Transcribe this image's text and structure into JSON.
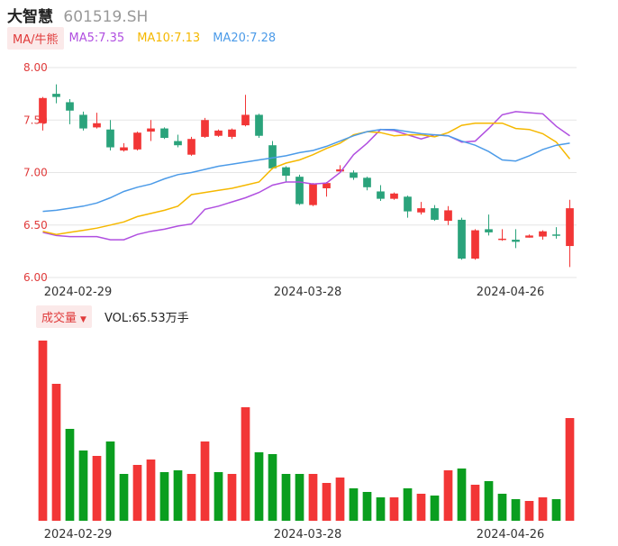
{
  "header": {
    "name": "大智慧",
    "code": "601519.SH"
  },
  "ma_bar": {
    "badge": "MA/牛熊",
    "items": [
      {
        "label": "MA5:7.35",
        "color": "#b04fe0"
      },
      {
        "label": "MA10:7.13",
        "color": "#f5b800"
      },
      {
        "label": "MA20:7.28",
        "color": "#4c9be8"
      }
    ]
  },
  "vol_bar": {
    "badge": "成交量",
    "caret": "▼",
    "label": "VOL:65.53万手"
  },
  "colors": {
    "up": "#f23636",
    "down": "#2aa37b",
    "vol_up": "#f23636",
    "vol_down": "#0a9e1f",
    "axis_text": "#e03b3b",
    "grid": "#e6e6e6",
    "date": "#333333"
  },
  "chart_data": [
    {
      "type": "candlestick",
      "ylim": [
        6.0,
        8.0
      ],
      "yticks": [
        "8.00",
        "7.50",
        "7.00",
        "6.50",
        "6.00"
      ],
      "xticks": [
        {
          "index": 3,
          "label": "2024-02-29"
        },
        {
          "index": 20,
          "label": "2024-03-28"
        },
        {
          "index": 35,
          "label": "2024-04-26"
        }
      ],
      "candles": [
        {
          "o": 7.47,
          "c": 7.71,
          "h": 7.72,
          "l": 7.4
        },
        {
          "o": 7.75,
          "c": 7.72,
          "h": 7.84,
          "l": 7.66
        },
        {
          "o": 7.67,
          "c": 7.59,
          "h": 7.7,
          "l": 7.46
        },
        {
          "o": 7.55,
          "c": 7.42,
          "h": 7.58,
          "l": 7.4
        },
        {
          "o": 7.43,
          "c": 7.47,
          "h": 7.57,
          "l": 7.42
        },
        {
          "o": 7.41,
          "c": 7.24,
          "h": 7.5,
          "l": 7.21
        },
        {
          "o": 7.21,
          "c": 7.24,
          "h": 7.28,
          "l": 7.2
        },
        {
          "o": 7.22,
          "c": 7.38,
          "h": 7.39,
          "l": 7.21
        },
        {
          "o": 7.39,
          "c": 7.42,
          "h": 7.5,
          "l": 7.3
        },
        {
          "o": 7.42,
          "c": 7.33,
          "h": 7.43,
          "l": 7.32
        },
        {
          "o": 7.3,
          "c": 7.26,
          "h": 7.36,
          "l": 7.24
        },
        {
          "o": 7.17,
          "c": 7.32,
          "h": 7.34,
          "l": 7.16
        },
        {
          "o": 7.34,
          "c": 7.5,
          "h": 7.52,
          "l": 7.33
        },
        {
          "o": 7.35,
          "c": 7.4,
          "h": 7.41,
          "l": 7.34
        },
        {
          "o": 7.34,
          "c": 7.41,
          "h": 7.42,
          "l": 7.32
        },
        {
          "o": 7.45,
          "c": 7.55,
          "h": 7.74,
          "l": 7.44
        },
        {
          "o": 7.55,
          "c": 7.35,
          "h": 7.56,
          "l": 7.33
        },
        {
          "o": 7.26,
          "c": 7.04,
          "h": 7.3,
          "l": 7.03
        },
        {
          "o": 7.05,
          "c": 6.97,
          "h": 7.06,
          "l": 6.91
        },
        {
          "o": 6.96,
          "c": 6.7,
          "h": 6.98,
          "l": 6.69
        },
        {
          "o": 6.69,
          "c": 6.89,
          "h": 6.9,
          "l": 6.68
        },
        {
          "o": 6.85,
          "c": 6.9,
          "h": 6.91,
          "l": 6.77
        },
        {
          "o": 7.01,
          "c": 7.03,
          "h": 7.07,
          "l": 7.0
        },
        {
          "o": 7.0,
          "c": 6.95,
          "h": 7.02,
          "l": 6.93
        },
        {
          "o": 6.95,
          "c": 6.86,
          "h": 6.96,
          "l": 6.83
        },
        {
          "o": 6.82,
          "c": 6.75,
          "h": 6.88,
          "l": 6.73
        },
        {
          "o": 6.75,
          "c": 6.8,
          "h": 6.81,
          "l": 6.74
        },
        {
          "o": 6.77,
          "c": 6.63,
          "h": 6.78,
          "l": 6.57
        },
        {
          "o": 6.62,
          "c": 6.66,
          "h": 6.72,
          "l": 6.6
        },
        {
          "o": 6.66,
          "c": 6.55,
          "h": 6.69,
          "l": 6.54
        },
        {
          "o": 6.54,
          "c": 6.64,
          "h": 6.68,
          "l": 6.5
        },
        {
          "o": 6.55,
          "c": 6.18,
          "h": 6.57,
          "l": 6.17
        },
        {
          "o": 6.18,
          "c": 6.45,
          "h": 6.46,
          "l": 6.17
        },
        {
          "o": 6.46,
          "c": 6.43,
          "h": 6.6,
          "l": 6.4
        },
        {
          "o": 6.36,
          "c": 6.37,
          "h": 6.46,
          "l": 6.35
        },
        {
          "o": 6.36,
          "c": 6.34,
          "h": 6.46,
          "l": 6.28
        },
        {
          "o": 6.38,
          "c": 6.4,
          "h": 6.41,
          "l": 6.38
        },
        {
          "o": 6.39,
          "c": 6.44,
          "h": 6.45,
          "l": 6.36
        },
        {
          "o": 6.41,
          "c": 6.4,
          "h": 6.48,
          "l": 6.37
        },
        {
          "o": 6.3,
          "c": 6.66,
          "h": 6.74,
          "l": 6.1
        }
      ],
      "ma5": [
        6.43,
        6.4,
        6.39,
        6.39,
        6.39,
        6.36,
        6.36,
        6.41,
        6.44,
        6.46,
        6.49,
        6.51,
        6.65,
        6.68,
        6.72,
        6.76,
        6.81,
        6.88,
        6.91,
        6.91,
        6.89,
        6.9,
        7.0,
        7.17,
        7.28,
        7.41,
        7.4,
        7.36,
        7.32,
        7.36,
        7.35,
        7.29,
        7.3,
        7.42,
        7.55,
        7.58,
        7.57,
        7.56,
        7.44,
        7.35
      ],
      "ma10": [
        6.44,
        6.41,
        6.43,
        6.45,
        6.47,
        6.5,
        6.53,
        6.58,
        6.61,
        6.64,
        6.68,
        6.79,
        6.81,
        6.83,
        6.85,
        6.88,
        6.91,
        7.04,
        7.09,
        7.12,
        7.17,
        7.23,
        7.28,
        7.36,
        7.39,
        7.38,
        7.35,
        7.36,
        7.36,
        7.34,
        7.38,
        7.45,
        7.47,
        7.47,
        7.47,
        7.42,
        7.41,
        7.37,
        7.29,
        7.13
      ],
      "ma20": [
        6.63,
        6.64,
        6.66,
        6.68,
        6.71,
        6.76,
        6.82,
        6.86,
        6.89,
        6.94,
        6.98,
        7.0,
        7.03,
        7.06,
        7.08,
        7.1,
        7.12,
        7.14,
        7.16,
        7.19,
        7.21,
        7.25,
        7.3,
        7.35,
        7.39,
        7.41,
        7.41,
        7.39,
        7.37,
        7.36,
        7.35,
        7.3,
        7.26,
        7.2,
        7.12,
        7.11,
        7.16,
        7.22,
        7.26,
        7.28
      ]
    },
    {
      "type": "bar",
      "name": "VOL",
      "ylim": [
        0,
        100
      ],
      "values": [
        {
          "v": 100,
          "up": true
        },
        {
          "v": 76,
          "up": true
        },
        {
          "v": 51,
          "up": false
        },
        {
          "v": 39,
          "up": false
        },
        {
          "v": 36,
          "up": true
        },
        {
          "v": 44,
          "up": false
        },
        {
          "v": 26,
          "up": false
        },
        {
          "v": 31,
          "up": true
        },
        {
          "v": 34,
          "up": true
        },
        {
          "v": 27,
          "up": false
        },
        {
          "v": 28,
          "up": false
        },
        {
          "v": 26,
          "up": true
        },
        {
          "v": 44,
          "up": true
        },
        {
          "v": 27,
          "up": false
        },
        {
          "v": 26,
          "up": true
        },
        {
          "v": 63,
          "up": true
        },
        {
          "v": 38,
          "up": false
        },
        {
          "v": 37,
          "up": false
        },
        {
          "v": 26,
          "up": false
        },
        {
          "v": 26,
          "up": false
        },
        {
          "v": 26,
          "up": true
        },
        {
          "v": 21,
          "up": true
        },
        {
          "v": 24,
          "up": true
        },
        {
          "v": 18,
          "up": false
        },
        {
          "v": 16,
          "up": false
        },
        {
          "v": 13,
          "up": false
        },
        {
          "v": 13,
          "up": true
        },
        {
          "v": 18,
          "up": false
        },
        {
          "v": 15,
          "up": true
        },
        {
          "v": 14,
          "up": false
        },
        {
          "v": 28,
          "up": true
        },
        {
          "v": 29,
          "up": false
        },
        {
          "v": 20,
          "up": true
        },
        {
          "v": 22,
          "up": false
        },
        {
          "v": 15,
          "up": false
        },
        {
          "v": 12,
          "up": false
        },
        {
          "v": 11,
          "up": true
        },
        {
          "v": 13,
          "up": true
        },
        {
          "v": 12,
          "up": false
        },
        {
          "v": 57,
          "up": true
        }
      ]
    }
  ]
}
